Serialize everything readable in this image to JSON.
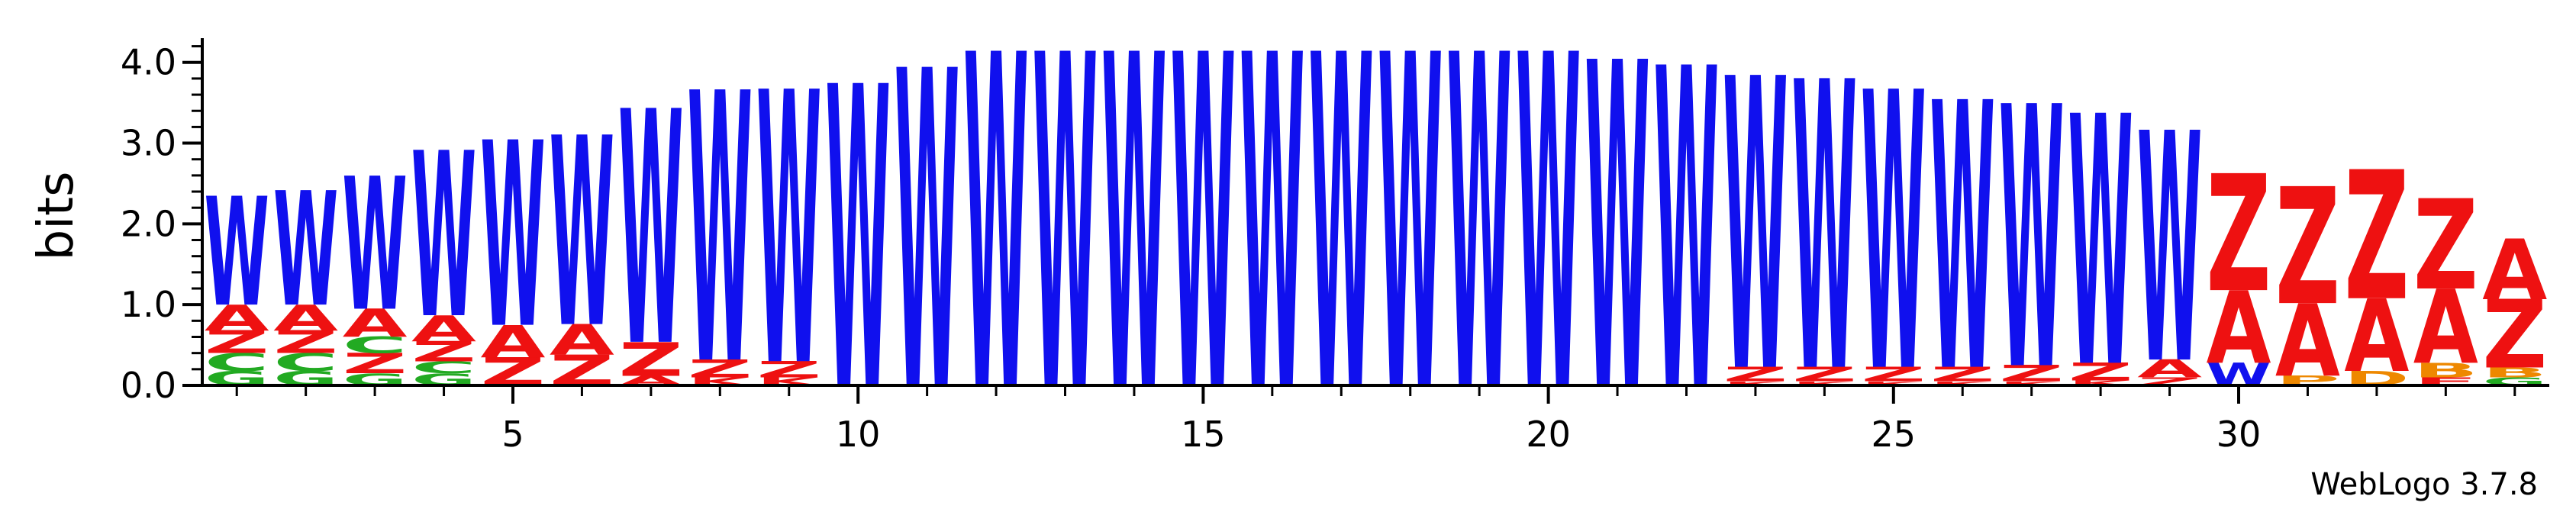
{
  "chart_data": {
    "type": "sequence-logo",
    "ylabel": "bits",
    "ylim": [
      0,
      4.3
    ],
    "yticks": [
      "0.0",
      "1.0",
      "2.0",
      "3.0",
      "4.0"
    ],
    "xlim": [
      0.5,
      34.5
    ],
    "xticks": [
      "5",
      "10",
      "15",
      "20",
      "25",
      "30"
    ],
    "credit": "WebLogo 3.7.8",
    "colors": {
      "W": "#1010ee",
      "A": "#ee1111",
      "Z": "#ee1111",
      "C": "#22aa22",
      "G": "#22aa22",
      "K": "#ee1111",
      "E": "#ee1111",
      "D": "#ee8800",
      "B": "#ee8800",
      "P": "#ee8800"
    },
    "positions": [
      {
        "x": 1,
        "stack": [
          {
            "letter": "G",
            "bits": 0.18
          },
          {
            "letter": "C",
            "bits": 0.22
          },
          {
            "letter": "Z",
            "bits": 0.28
          },
          {
            "letter": "A",
            "bits": 0.32
          },
          {
            "letter": "W",
            "bits": 1.35
          }
        ]
      },
      {
        "x": 2,
        "stack": [
          {
            "letter": "G",
            "bits": 0.18
          },
          {
            "letter": "C",
            "bits": 0.22
          },
          {
            "letter": "Z",
            "bits": 0.28
          },
          {
            "letter": "A",
            "bits": 0.32
          },
          {
            "letter": "W",
            "bits": 1.42
          }
        ]
      },
      {
        "x": 3,
        "stack": [
          {
            "letter": "G",
            "bits": 0.15
          },
          {
            "letter": "Z",
            "bits": 0.25
          },
          {
            "letter": "C",
            "bits": 0.2
          },
          {
            "letter": "A",
            "bits": 0.35
          },
          {
            "letter": "W",
            "bits": 1.65
          }
        ]
      },
      {
        "x": 4,
        "stack": [
          {
            "letter": "G",
            "bits": 0.15
          },
          {
            "letter": "C",
            "bits": 0.15
          },
          {
            "letter": "Z",
            "bits": 0.25
          },
          {
            "letter": "A",
            "bits": 0.32
          },
          {
            "letter": "W",
            "bits": 2.05
          }
        ]
      },
      {
        "x": 5,
        "stack": [
          {
            "letter": "Z",
            "bits": 0.35
          },
          {
            "letter": "A",
            "bits": 0.4
          },
          {
            "letter": "W",
            "bits": 2.3
          }
        ]
      },
      {
        "x": 6,
        "stack": [
          {
            "letter": "Z",
            "bits": 0.38
          },
          {
            "letter": "A",
            "bits": 0.38
          },
          {
            "letter": "W",
            "bits": 2.35
          }
        ]
      },
      {
        "x": 7,
        "stack": [
          {
            "letter": "A",
            "bits": 0.12
          },
          {
            "letter": "Z",
            "bits": 0.42
          },
          {
            "letter": "W",
            "bits": 2.9
          }
        ]
      },
      {
        "x": 8,
        "stack": [
          {
            "letter": "K",
            "bits": 0.1
          },
          {
            "letter": "Z",
            "bits": 0.22
          },
          {
            "letter": "W",
            "bits": 3.35
          }
        ]
      },
      {
        "x": 9,
        "stack": [
          {
            "letter": "K",
            "bits": 0.1
          },
          {
            "letter": "Z",
            "bits": 0.2
          },
          {
            "letter": "W",
            "bits": 3.38
          }
        ]
      },
      {
        "x": 10,
        "stack": [
          {
            "letter": "W",
            "bits": 3.75
          }
        ]
      },
      {
        "x": 11,
        "stack": [
          {
            "letter": "W",
            "bits": 3.95
          }
        ]
      },
      {
        "x": 12,
        "stack": [
          {
            "letter": "W",
            "bits": 4.15
          }
        ]
      },
      {
        "x": 13,
        "stack": [
          {
            "letter": "W",
            "bits": 4.15
          }
        ]
      },
      {
        "x": 14,
        "stack": [
          {
            "letter": "W",
            "bits": 4.15
          }
        ]
      },
      {
        "x": 15,
        "stack": [
          {
            "letter": "W",
            "bits": 4.15
          }
        ]
      },
      {
        "x": 16,
        "stack": [
          {
            "letter": "W",
            "bits": 4.15
          }
        ]
      },
      {
        "x": 17,
        "stack": [
          {
            "letter": "W",
            "bits": 4.15
          }
        ]
      },
      {
        "x": 18,
        "stack": [
          {
            "letter": "W",
            "bits": 4.15
          }
        ]
      },
      {
        "x": 19,
        "stack": [
          {
            "letter": "W",
            "bits": 4.15
          }
        ]
      },
      {
        "x": 20,
        "stack": [
          {
            "letter": "W",
            "bits": 4.15
          }
        ]
      },
      {
        "x": 21,
        "stack": [
          {
            "letter": "W",
            "bits": 4.05
          }
        ]
      },
      {
        "x": 22,
        "stack": [
          {
            "letter": "W",
            "bits": 3.98
          }
        ]
      },
      {
        "x": 23,
        "stack": [
          {
            "letter": "K",
            "bits": 0.05
          },
          {
            "letter": "Z",
            "bits": 0.18
          },
          {
            "letter": "W",
            "bits": 3.62
          }
        ]
      },
      {
        "x": 24,
        "stack": [
          {
            "letter": "K",
            "bits": 0.05
          },
          {
            "letter": "Z",
            "bits": 0.18
          },
          {
            "letter": "W",
            "bits": 3.58
          }
        ]
      },
      {
        "x": 25,
        "stack": [
          {
            "letter": "K",
            "bits": 0.05
          },
          {
            "letter": "Z",
            "bits": 0.18
          },
          {
            "letter": "W",
            "bits": 3.45
          }
        ]
      },
      {
        "x": 26,
        "stack": [
          {
            "letter": "K",
            "bits": 0.05
          },
          {
            "letter": "Z",
            "bits": 0.18
          },
          {
            "letter": "W",
            "bits": 3.32
          }
        ]
      },
      {
        "x": 27,
        "stack": [
          {
            "letter": "K",
            "bits": 0.05
          },
          {
            "letter": "Z",
            "bits": 0.2
          },
          {
            "letter": "W",
            "bits": 3.25
          }
        ]
      },
      {
        "x": 28,
        "stack": [
          {
            "letter": "K",
            "bits": 0.06
          },
          {
            "letter": "Z",
            "bits": 0.22
          },
          {
            "letter": "W",
            "bits": 3.1
          }
        ]
      },
      {
        "x": 29,
        "stack": [
          {
            "letter": "Z",
            "bits": 0.1
          },
          {
            "letter": "A",
            "bits": 0.22
          },
          {
            "letter": "W",
            "bits": 2.85
          }
        ]
      },
      {
        "x": 30,
        "stack": [
          {
            "letter": "W",
            "bits": 0.28
          },
          {
            "letter": "A",
            "bits": 0.9
          },
          {
            "letter": "Z",
            "bits": 1.45
          }
        ]
      },
      {
        "x": 31,
        "stack": [
          {
            "letter": "P",
            "bits": 0.12
          },
          {
            "letter": "A",
            "bits": 0.9
          },
          {
            "letter": "Z",
            "bits": 1.45
          }
        ]
      },
      {
        "x": 32,
        "stack": [
          {
            "letter": "D",
            "bits": 0.18
          },
          {
            "letter": "A",
            "bits": 0.9
          },
          {
            "letter": "Z",
            "bits": 1.6
          }
        ]
      },
      {
        "x": 33,
        "stack": [
          {
            "letter": "E",
            "bits": 0.1
          },
          {
            "letter": "B",
            "bits": 0.18
          },
          {
            "letter": "A",
            "bits": 0.92
          },
          {
            "letter": "Z",
            "bits": 1.12
          }
        ]
      },
      {
        "x": 34,
        "stack": [
          {
            "letter": "G",
            "bits": 0.1
          },
          {
            "letter": "B",
            "bits": 0.12
          },
          {
            "letter": "Z",
            "bits": 0.85
          },
          {
            "letter": "A",
            "bits": 0.75
          }
        ]
      }
    ]
  }
}
